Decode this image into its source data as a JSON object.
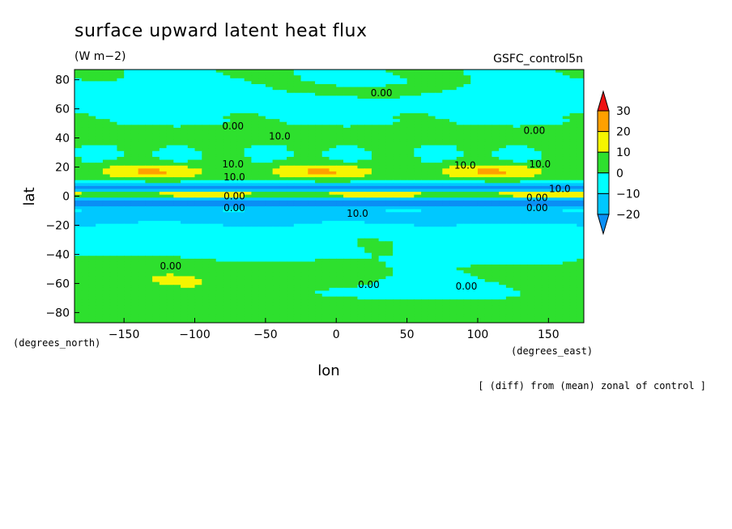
{
  "chart_data": {
    "type": "heatmap",
    "title": "surface upward latent heat flux",
    "units": "(W m−2)",
    "dataset": "GSFC_control5n",
    "xlabel": "lon",
    "ylabel": "lat",
    "x_units": "(degrees_east)",
    "y_units": "(degrees_north)",
    "note": "[ (diff) from (mean) zonal of control ]",
    "xlim": [
      -185,
      175
    ],
    "ylim": [
      -87,
      87
    ],
    "x_ticks": [
      -150,
      -100,
      -50,
      0,
      50,
      100,
      150
    ],
    "y_ticks": [
      -80,
      -60,
      -40,
      -20,
      0,
      20,
      40,
      60,
      80
    ],
    "colorbar": {
      "levels": [
        -20,
        -10,
        0,
        10,
        20,
        30
      ],
      "bins": [
        {
          "range": "< -20",
          "color": "#0a8ff5"
        },
        {
          "range": "-20 to -10",
          "color": "#00c8ff"
        },
        {
          "range": "-10 to 0",
          "color": "#00ffff"
        },
        {
          "range": "0 to 10",
          "color": "#2ee02e"
        },
        {
          "range": "10 to 20",
          "color": "#f5f500"
        },
        {
          "range": "20 to 30",
          "color": "#ffa000"
        },
        {
          "range": "> 30",
          "color": "#ee1111"
        }
      ]
    },
    "contour_labels": [
      {
        "text": "0.00",
        "lon": 32,
        "lat": 71
      },
      {
        "text": "0.00",
        "lon": -73,
        "lat": 48
      },
      {
        "text": "10.0",
        "lon": -40,
        "lat": 41
      },
      {
        "text": "0.00",
        "lon": 140,
        "lat": 45
      },
      {
        "text": "10.0",
        "lon": -73,
        "lat": 22
      },
      {
        "text": "10.0",
        "lon": 91,
        "lat": 21
      },
      {
        "text": "10.0",
        "lon": 144,
        "lat": 22
      },
      {
        "text": "10.0",
        "lon": -72,
        "lat": 13
      },
      {
        "text": "0.00",
        "lon": -72,
        "lat": 0
      },
      {
        "text": "0.00",
        "lon": -72,
        "lat": -8
      },
      {
        "text": "0.00",
        "lon": 142,
        "lat": -1
      },
      {
        "text": "0.00",
        "lon": 142,
        "lat": -8
      },
      {
        "text": "10.0",
        "lon": 158,
        "lat": 5
      },
      {
        "text": "10.0",
        "lon": 15,
        "lat": -12
      },
      {
        "text": "0.00",
        "lon": -117,
        "lat": -48
      },
      {
        "text": "0.00",
        "lon": 23,
        "lat": -61
      },
      {
        "text": "0.00",
        "lon": 92,
        "lat": -62
      }
    ]
  }
}
